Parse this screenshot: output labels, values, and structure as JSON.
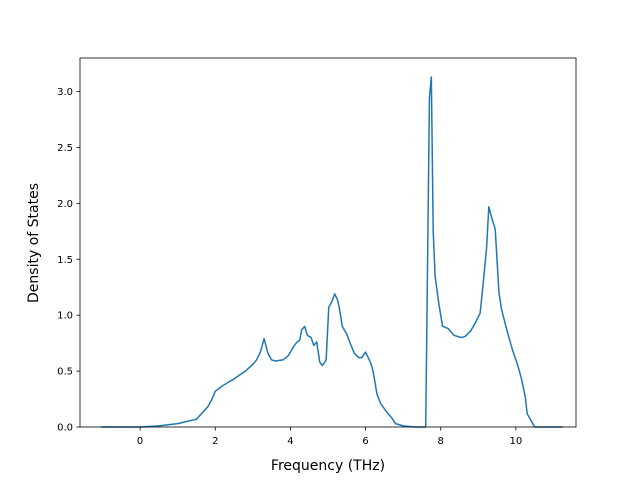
{
  "chart_data": {
    "type": "line",
    "title": "",
    "xlabel": "Frequency (THz)",
    "ylabel": "Density of States",
    "xlim": [
      -1.6,
      11.6
    ],
    "ylim": [
      0.0,
      3.3
    ],
    "xticks": [
      0,
      2,
      4,
      6,
      8,
      10
    ],
    "yticks": [
      0.0,
      0.5,
      1.0,
      1.5,
      2.0,
      2.5,
      3.0
    ],
    "xtick_labels": [
      "0",
      "2",
      "4",
      "6",
      "8",
      "10"
    ],
    "ytick_labels": [
      "0.0",
      "0.5",
      "1.0",
      "1.5",
      "2.0",
      "2.5",
      "3.0"
    ],
    "grid": false,
    "line_color": "#1f77b4",
    "series": [
      {
        "x": [
          -1.05,
          0.0,
          0.5,
          1.0,
          1.5,
          1.8,
          1.9,
          2.0,
          2.2,
          2.5,
          2.8,
          3.0,
          3.1,
          3.2,
          3.3,
          3.4,
          3.5,
          3.6,
          3.8,
          3.95,
          4.05,
          4.15,
          4.25,
          4.3,
          4.38,
          4.45,
          4.55,
          4.62,
          4.7,
          4.78,
          4.85,
          4.95,
          5.02,
          5.1,
          5.18,
          5.25,
          5.3,
          5.38,
          5.5,
          5.6,
          5.7,
          5.82,
          5.9,
          6.0,
          6.1,
          6.15,
          6.2,
          6.3,
          6.4,
          6.55,
          6.7,
          6.8,
          7.0,
          7.3,
          7.6,
          7.7,
          7.75,
          7.8,
          7.85,
          7.95,
          8.05,
          8.2,
          8.35,
          8.55,
          8.65,
          8.8,
          8.95,
          9.05,
          9.12,
          9.22,
          9.28,
          9.35,
          9.45,
          9.55,
          9.62,
          9.75,
          9.9,
          10.05,
          10.15,
          10.2,
          10.25,
          10.3,
          10.5,
          11.25
        ],
        "y": [
          0.0,
          0.0,
          0.01,
          0.03,
          0.07,
          0.18,
          0.24,
          0.32,
          0.37,
          0.43,
          0.5,
          0.56,
          0.6,
          0.67,
          0.79,
          0.66,
          0.6,
          0.59,
          0.6,
          0.64,
          0.7,
          0.75,
          0.78,
          0.87,
          0.9,
          0.82,
          0.8,
          0.73,
          0.76,
          0.58,
          0.55,
          0.6,
          1.07,
          1.12,
          1.19,
          1.14,
          1.07,
          0.9,
          0.83,
          0.74,
          0.66,
          0.62,
          0.62,
          0.67,
          0.6,
          0.56,
          0.5,
          0.3,
          0.21,
          0.14,
          0.08,
          0.03,
          0.01,
          0.0,
          0.0,
          2.95,
          3.13,
          1.75,
          1.35,
          1.1,
          0.9,
          0.88,
          0.82,
          0.8,
          0.81,
          0.86,
          0.95,
          1.02,
          1.25,
          1.6,
          1.97,
          1.88,
          1.77,
          1.2,
          1.05,
          0.88,
          0.7,
          0.55,
          0.43,
          0.35,
          0.27,
          0.12,
          0.0,
          0.0
        ]
      }
    ]
  }
}
